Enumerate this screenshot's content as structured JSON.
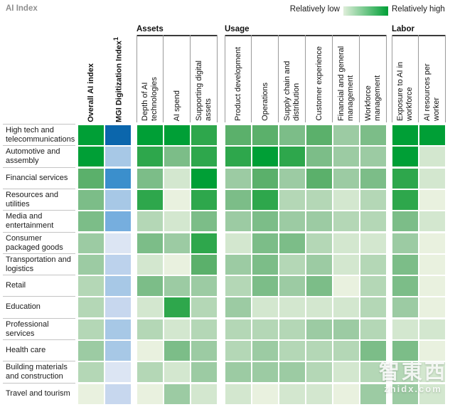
{
  "title": "AI Index",
  "legend": {
    "low_label": "Relatively low",
    "high_label": "Relatively high",
    "gradient_start": "#dfeeda",
    "gradient_end": "#009f36"
  },
  "palette": {
    "g1": "#e9f1df",
    "g2": "#d3e7cf",
    "g3": "#b4d7b6",
    "g4": "#9ccba3",
    "g5": "#7cbd88",
    "g6": "#5bb06b",
    "g7": "#2ea74c",
    "g8": "#009f36",
    "b1": "#dce5f3",
    "b2": "#c7d7ee",
    "b3": "#bcd2ec",
    "b4": "#a7c8e6",
    "b5": "#76aede",
    "b6": "#3b8fcc",
    "b7": "#0b66ac"
  },
  "columns": {
    "standalone": [
      {
        "label": "Overall AI index",
        "sup": ""
      },
      {
        "label": "MGI Digitization Index",
        "sup": "1"
      }
    ],
    "groups": [
      {
        "label": "Assets",
        "columns": [
          "Depth of AI technologies",
          "AI spend",
          "Supporting digital assets"
        ]
      },
      {
        "label": "Usage",
        "columns": [
          "Product development",
          "Operations",
          "Supply chain and distribution",
          "Customer experience",
          "Financial and general management",
          "Workforce management"
        ]
      },
      {
        "label": "Labor",
        "columns": [
          "Exposure to AI in workforce",
          "AI resources per worker"
        ]
      }
    ]
  },
  "chart_data": {
    "type": "heatmap",
    "scale_note": "relative intensity; g1=lowest green ... g8=highest green, b1=lowest blue ... b7=highest blue (MGI Digitization Index column uses blue)",
    "column_order": [
      "Overall AI index",
      "MGI Digitization Index",
      "Depth of AI technologies",
      "AI spend",
      "Supporting digital assets",
      "Product development",
      "Operations",
      "Supply chain and distribution",
      "Customer experience",
      "Financial and general management",
      "Workforce management",
      "Exposure to AI in workforce",
      "AI resources per worker"
    ],
    "rows": [
      {
        "label": "High tech and telecommunications",
        "cells": [
          "g8",
          "b7",
          "g8",
          "g8",
          "g7",
          "g6",
          "g6",
          "g5",
          "g6",
          "g4",
          "g5",
          "g8",
          "g8"
        ]
      },
      {
        "label": "Automotive and assembly",
        "cells": [
          "g8",
          "b4",
          "g7",
          "g5",
          "g7",
          "g7",
          "g8",
          "g7",
          "g5",
          "g4",
          "g4",
          "g8",
          "g2"
        ]
      },
      {
        "label": "Financial services",
        "cells": [
          "g6",
          "b6",
          "g5",
          "g2",
          "g8",
          "g4",
          "g6",
          "g4",
          "g6",
          "g4",
          "g5",
          "g7",
          "g2"
        ]
      },
      {
        "label": "Resources and utilities",
        "cells": [
          "g5",
          "b4",
          "g7",
          "g1",
          "g7",
          "g5",
          "g7",
          "g3",
          "g3",
          "g2",
          "g3",
          "g7",
          "g1"
        ]
      },
      {
        "label": "Media and entertainment",
        "cells": [
          "g5",
          "b5",
          "g3",
          "g2",
          "g5",
          "g4",
          "g5",
          "g4",
          "g4",
          "g3",
          "g3",
          "g5",
          "g2"
        ]
      },
      {
        "label": "Consumer packaged goods",
        "cells": [
          "g4",
          "b1",
          "g5",
          "g4",
          "g7",
          "g2",
          "g5",
          "g5",
          "g3",
          "g2",
          "g2",
          "g4",
          "g1"
        ]
      },
      {
        "label": "Transportation and logistics",
        "cells": [
          "g4",
          "b3",
          "g2",
          "g1",
          "g6",
          "g4",
          "g5",
          "g3",
          "g4",
          "g2",
          "g3",
          "g5",
          "g1"
        ]
      },
      {
        "label": "Retail",
        "cells": [
          "g3",
          "b4",
          "g5",
          "g4",
          "g4",
          "g3",
          "g5",
          "g4",
          "g5",
          "g1",
          "g3",
          "g5",
          "g1"
        ]
      },
      {
        "label": "Education",
        "cells": [
          "g3",
          "b2",
          "g2",
          "g7",
          "g3",
          "g4",
          "g2",
          "g2",
          "g2",
          "g2",
          "g3",
          "g4",
          "g1"
        ]
      },
      {
        "label": "Professional services",
        "cells": [
          "g3",
          "b4",
          "g3",
          "g2",
          "g3",
          "g3",
          "g3",
          "g3",
          "g4",
          "g4",
          "g3",
          "g2",
          "g2"
        ]
      },
      {
        "label": "Health care",
        "cells": [
          "g4",
          "b4",
          "g1",
          "g5",
          "g4",
          "g3",
          "g4",
          "g3",
          "g3",
          "g3",
          "g5",
          "g5",
          "g1"
        ]
      },
      {
        "label": "Building materials and construction",
        "cells": [
          "g3",
          "b1",
          "g3",
          "g2",
          "g4",
          "g4",
          "g4",
          "g4",
          "g3",
          "g2",
          "g3",
          "g3",
          "g2"
        ]
      },
      {
        "label": "Travel and tourism",
        "cells": [
          "g1",
          "b2",
          "g1",
          "g4",
          "g2",
          "g2",
          "g1",
          "g2",
          "g2",
          "g1",
          "g4",
          "g4",
          "g2"
        ]
      }
    ]
  },
  "watermark": {
    "line1": "智東西",
    "line2": "zhidx.com"
  }
}
